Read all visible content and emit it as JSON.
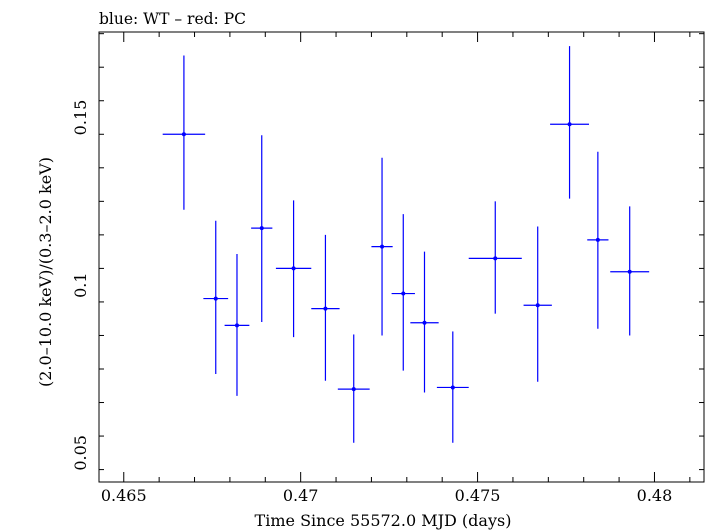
{
  "chart_data": {
    "type": "scatter",
    "title": "blue: WT – red: PC",
    "xlabel": "Time Since 55572.0 MJD (days)",
    "ylabel": "(2.0–10.0 keV)/(0.3–2.0 keV)",
    "xlim": [
      0.4643,
      0.4814
    ],
    "ylim": [
      0.0413,
      0.1755
    ],
    "x_ticks": [
      {
        "value": 0.465,
        "label": "0.465"
      },
      {
        "value": 0.47,
        "label": "0.47"
      },
      {
        "value": 0.475,
        "label": "0.475"
      },
      {
        "value": 0.48,
        "label": "0.48"
      }
    ],
    "y_ticks": [
      {
        "value": 0.05,
        "label": "0.05"
      },
      {
        "value": 0.1,
        "label": "0.1"
      },
      {
        "value": 0.15,
        "label": "0.15"
      }
    ],
    "grid": false,
    "legend": "none",
    "series": [
      {
        "name": "WT",
        "color": "#0000ff",
        "points": [
          {
            "x": 0.4667,
            "y": 0.145,
            "xerr": 0.0006,
            "ylo": 0.1225,
            "yhi": 0.1685
          },
          {
            "x": 0.4676,
            "y": 0.096,
            "xerr": 0.00035,
            "ylo": 0.0735,
            "yhi": 0.1192
          },
          {
            "x": 0.4682,
            "y": 0.088,
            "xerr": 0.00035,
            "ylo": 0.067,
            "yhi": 0.1093
          },
          {
            "x": 0.4689,
            "y": 0.117,
            "xerr": 0.0003,
            "ylo": 0.089,
            "yhi": 0.1447
          },
          {
            "x": 0.4698,
            "y": 0.105,
            "xerr": 0.0005,
            "ylo": 0.0845,
            "yhi": 0.1253
          },
          {
            "x": 0.4707,
            "y": 0.093,
            "xerr": 0.0004,
            "ylo": 0.0715,
            "yhi": 0.115
          },
          {
            "x": 0.4715,
            "y": 0.069,
            "xerr": 0.00045,
            "ylo": 0.053,
            "yhi": 0.0853
          },
          {
            "x": 0.4723,
            "y": 0.1115,
            "xerr": 0.0003,
            "ylo": 0.085,
            "yhi": 0.138
          },
          {
            "x": 0.4729,
            "y": 0.0975,
            "xerr": 0.00033,
            "ylo": 0.0745,
            "yhi": 0.1212
          },
          {
            "x": 0.4735,
            "y": 0.0888,
            "xerr": 0.0004,
            "ylo": 0.068,
            "yhi": 0.11
          },
          {
            "x": 0.4743,
            "y": 0.0695,
            "xerr": 0.00045,
            "ylo": 0.053,
            "yhi": 0.0862
          },
          {
            "x": 0.4755,
            "y": 0.108,
            "xerr": 0.00075,
            "ylo": 0.0915,
            "yhi": 0.125
          },
          {
            "x": 0.4767,
            "y": 0.094,
            "xerr": 0.0004,
            "ylo": 0.0712,
            "yhi": 0.1175
          },
          {
            "x": 0.4776,
            "y": 0.148,
            "xerr": 0.00055,
            "ylo": 0.1258,
            "yhi": 0.1713
          },
          {
            "x": 0.4784,
            "y": 0.1135,
            "xerr": 0.0003,
            "ylo": 0.087,
            "yhi": 0.1398
          },
          {
            "x": 0.4793,
            "y": 0.104,
            "xerr": 0.00055,
            "ylo": 0.085,
            "yhi": 0.1235
          }
        ]
      }
    ]
  }
}
